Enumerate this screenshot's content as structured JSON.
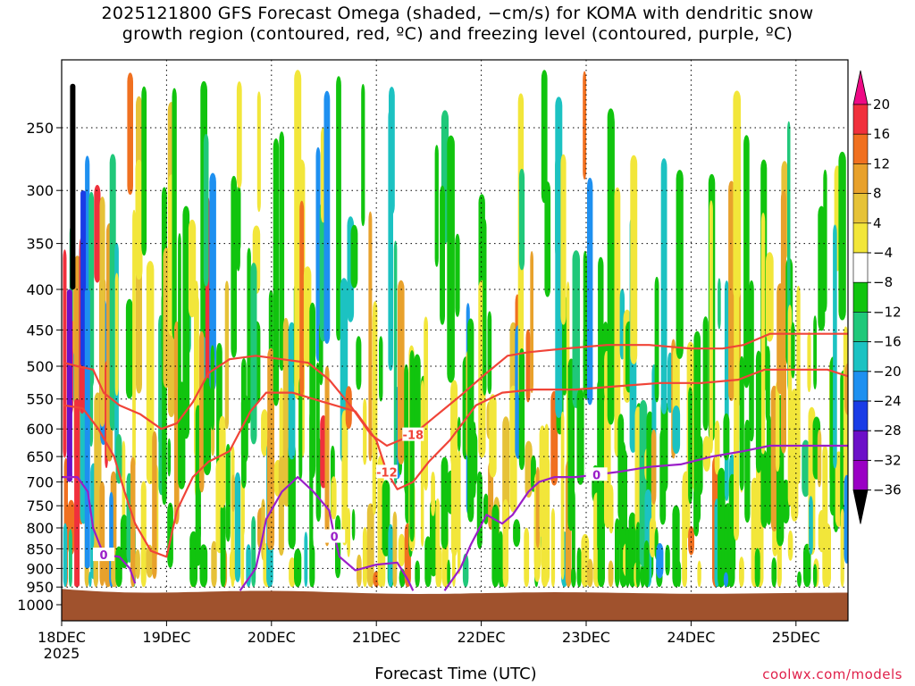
{
  "title": {
    "line1": "2025121800 GFS Forecast Omega (shaded, −cm/s) for KOMA with dendritic snow",
    "line2": "growth region (contoured, red, ºC) and freezing level (contoured, purple, ºC)"
  },
  "credit": "coolwx.com/models",
  "chart_data": {
    "type": "heatmap",
    "title": "2025121800 GFS Forecast Omega (shaded, −cm/s) for KOMA with dendritic snow growth region (contoured, red, ºC) and freezing level (contoured, purple, ºC)",
    "xlabel": "Forecast Time (UTC)",
    "ylabel": "",
    "x_ticks": [
      {
        "label": "18DEC",
        "sublabel": "2025",
        "t": 0
      },
      {
        "label": "19DEC",
        "t": 1
      },
      {
        "label": "20DEC",
        "t": 2
      },
      {
        "label": "21DEC",
        "t": 3
      },
      {
        "label": "22DEC",
        "t": 4
      },
      {
        "label": "23DEC",
        "t": 5
      },
      {
        "label": "24DEC",
        "t": 6
      },
      {
        "label": "25DEC",
        "t": 7
      }
    ],
    "x_range_days": [
      0,
      7.5
    ],
    "y_ticks": [
      "250",
      "300",
      "350",
      "400",
      "450",
      "500",
      "550",
      "600",
      "650",
      "700",
      "750",
      "800",
      "850",
      "900",
      "950",
      "1000"
    ],
    "y_levels": [
      250,
      300,
      350,
      400,
      450,
      500,
      550,
      600,
      650,
      700,
      750,
      800,
      850,
      900,
      950,
      1000
    ],
    "y_range_hPa": [
      200,
      1025
    ],
    "y_scale": "pressure (log)",
    "grid": true,
    "colorbar": {
      "labels": [
        "20",
        "16",
        "12",
        "8",
        "4",
        "−4",
        "−8",
        "−12",
        "−16",
        "−20",
        "−24",
        "−28",
        "−32",
        "−36"
      ],
      "bands": [
        {
          "color": "#ee0a85"
        },
        {
          "color": "#f0303c"
        },
        {
          "color": "#f07020"
        },
        {
          "color": "#e8a12c"
        },
        {
          "color": "#e6c238"
        },
        {
          "color": "#f2e63a"
        },
        {
          "color": "#ffffff"
        },
        {
          "color": "#11c40e"
        },
        {
          "color": "#20c87a"
        },
        {
          "color": "#1cc2c2"
        },
        {
          "color": "#1e90f0"
        },
        {
          "color": "#1a3ce6"
        },
        {
          "color": "#6c10c8"
        },
        {
          "color": "#9a00c4"
        },
        {
          "color": "#a8a8a8"
        },
        {
          "color": "#000000"
        }
      ]
    },
    "contours": {
      "dendritic_red": [
        {
          "label": "-18",
          "points": [
            [
              0.02,
              495
            ],
            [
              0.15,
              500
            ],
            [
              0.3,
              505
            ],
            [
              0.4,
              540
            ],
            [
              0.55,
              560
            ],
            [
              0.75,
              575
            ],
            [
              0.95,
              600
            ],
            [
              1.1,
              590
            ],
            [
              1.25,
              555
            ],
            [
              1.4,
              510
            ],
            [
              1.6,
              490
            ],
            [
              1.85,
              485
            ],
            [
              2.1,
              490
            ],
            [
              2.35,
              495
            ],
            [
              2.55,
              520
            ],
            [
              2.75,
              560
            ],
            [
              2.95,
              610
            ],
            [
              3.1,
              630
            ],
            [
              3.35,
              610
            ],
            [
              3.55,
              580
            ],
            [
              3.8,
              545
            ],
            [
              4.05,
              510
            ],
            [
              4.25,
              485
            ],
            [
              4.45,
              480
            ],
            [
              4.8,
              475
            ],
            [
              5.2,
              470
            ],
            [
              5.6,
              470
            ],
            [
              6.0,
              475
            ],
            [
              6.3,
              475
            ],
            [
              6.5,
              470
            ],
            [
              6.75,
              455
            ],
            [
              7.1,
              455
            ],
            [
              7.5,
              455
            ]
          ]
        },
        {
          "label": "-12",
          "points": [
            [
              0.02,
              560
            ],
            [
              0.2,
              565
            ],
            [
              0.35,
              600
            ],
            [
              0.5,
              650
            ],
            [
              0.6,
              720
            ],
            [
              0.7,
              790
            ],
            [
              0.85,
              855
            ],
            [
              1.0,
              870
            ],
            [
              1.1,
              760
            ],
            [
              1.25,
              690
            ],
            [
              1.4,
              660
            ],
            [
              1.5,
              650
            ],
            [
              1.6,
              640
            ],
            [
              1.8,
              570
            ],
            [
              1.95,
              540
            ],
            [
              2.2,
              540
            ],
            [
              2.5,
              555
            ],
            [
              2.8,
              570
            ],
            [
              3.0,
              620
            ],
            [
              3.1,
              680
            ],
            [
              3.2,
              715
            ],
            [
              3.35,
              700
            ],
            [
              3.5,
              660
            ],
            [
              3.7,
              620
            ],
            [
              3.95,
              560
            ],
            [
              4.2,
              540
            ],
            [
              4.5,
              535
            ],
            [
              4.9,
              535
            ],
            [
              5.3,
              530
            ],
            [
              5.7,
              525
            ],
            [
              6.1,
              525
            ],
            [
              6.45,
              520
            ],
            [
              6.7,
              505
            ],
            [
              7.0,
              505
            ],
            [
              7.3,
              505
            ],
            [
              7.5,
              515
            ]
          ]
        }
      ],
      "freezing_purple": [
        {
          "label": "0",
          "points": [
            [
              0.0,
              690
            ],
            [
              0.15,
              690
            ],
            [
              0.25,
              720
            ],
            [
              0.3,
              800
            ],
            [
              0.4,
              865
            ],
            [
              0.55,
              870
            ],
            [
              0.65,
              900
            ],
            [
              0.7,
              940
            ]
          ]
        },
        {
          "label": "0",
          "points": [
            [
              1.7,
              960
            ],
            [
              1.85,
              900
            ],
            [
              1.9,
              840
            ],
            [
              1.95,
              780
            ],
            [
              2.1,
              720
            ],
            [
              2.25,
              690
            ],
            [
              2.4,
              720
            ],
            [
              2.55,
              760
            ],
            [
              2.6,
              820
            ],
            [
              2.65,
              870
            ],
            [
              2.8,
              905
            ],
            [
              3.0,
              890
            ],
            [
              3.2,
              885
            ],
            [
              3.3,
              930
            ],
            [
              3.35,
              960
            ]
          ]
        },
        {
          "label": "0",
          "points": [
            [
              3.65,
              960
            ],
            [
              3.8,
              900
            ],
            [
              3.9,
              840
            ],
            [
              4.05,
              770
            ],
            [
              4.2,
              790
            ],
            [
              4.3,
              770
            ],
            [
              4.45,
              720
            ],
            [
              4.55,
              700
            ],
            [
              4.7,
              690
            ],
            [
              4.9,
              690
            ],
            [
              5.1,
              685
            ],
            [
              5.3,
              680
            ],
            [
              5.6,
              670
            ],
            [
              5.9,
              665
            ],
            [
              6.2,
              650
            ],
            [
              6.5,
              640
            ],
            [
              6.75,
              630
            ],
            [
              7.0,
              630
            ],
            [
              7.5,
              630
            ]
          ]
        }
      ]
    },
    "terrain_color": "#a0522d"
  }
}
